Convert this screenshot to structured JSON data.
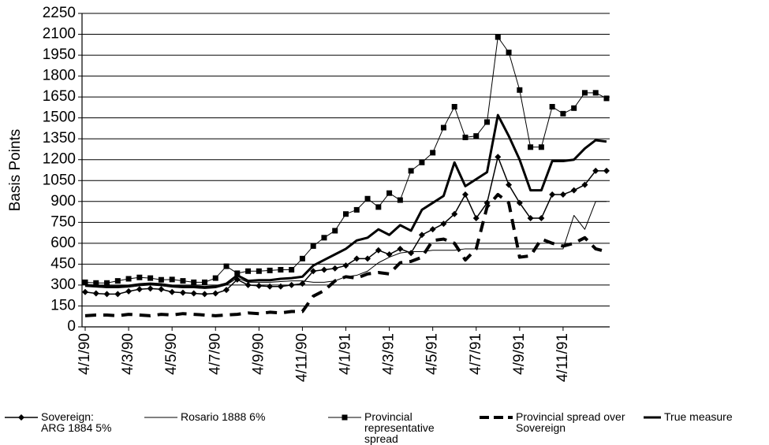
{
  "chart_data": {
    "type": "line",
    "y_label": "Basis Points",
    "categories": [
      "4/1/90",
      null,
      null,
      null,
      "4/3/90",
      null,
      null,
      null,
      "4/5/90",
      null,
      null,
      null,
      "4/7/90",
      null,
      null,
      null,
      "4/9/90",
      null,
      null,
      null,
      "4/11/90",
      null,
      null,
      null,
      "4/1/91",
      null,
      null,
      null,
      "4/3/91",
      null,
      null,
      null,
      "4/5/91",
      null,
      null,
      null,
      "4/7/91",
      null,
      null,
      null,
      "4/9/91",
      null,
      null,
      null,
      "4/11/91",
      null,
      null,
      null,
      null
    ],
    "series": [
      {
        "name": "Sovereign: ARG 1884 5%",
        "color": "#000000",
        "marker": "diamond",
        "line_width": 1.5,
        "dash": "solid",
        "values": [
          250,
          240,
          235,
          235,
          255,
          270,
          275,
          270,
          250,
          245,
          240,
          235,
          240,
          265,
          340,
          300,
          295,
          290,
          290,
          300,
          310,
          400,
          410,
          420,
          440,
          490,
          490,
          550,
          520,
          560,
          530,
          660,
          700,
          740,
          810,
          950,
          780,
          890,
          1220,
          1020,
          890,
          780,
          780,
          950,
          950,
          980,
          1020,
          1120,
          1120
        ]
      },
      {
        "name": "Rosario 1888 6%",
        "color": "#000000",
        "marker": "none",
        "line_width": 1,
        "dash": "solid",
        "values": [
          290,
          285,
          280,
          280,
          285,
          295,
          300,
          295,
          285,
          280,
          280,
          275,
          280,
          300,
          350,
          320,
          320,
          320,
          325,
          330,
          330,
          320,
          320,
          330,
          360,
          370,
          400,
          460,
          500,
          530,
          540,
          540,
          550,
          550,
          550,
          560,
          560,
          560,
          560,
          560,
          560,
          560,
          560,
          560,
          560,
          800,
          700,
          900,
          900
        ]
      },
      {
        "name": "Provincial representative spread",
        "color": "#000000",
        "marker": "square",
        "line_width": 1,
        "dash": "solid",
        "values": [
          320,
          315,
          315,
          330,
          345,
          355,
          350,
          338,
          340,
          330,
          320,
          320,
          350,
          435,
          385,
          400,
          400,
          405,
          410,
          410,
          490,
          580,
          640,
          690,
          810,
          840,
          920,
          860,
          960,
          910,
          1120,
          1180,
          1250,
          1430,
          1580,
          1360,
          1370,
          1470,
          2080,
          1970,
          1700,
          1290,
          1290,
          1580,
          1530,
          1570,
          1680,
          1680,
          1640
        ]
      },
      {
        "name": "Provincial spread over Sovereign",
        "color": "#000000",
        "marker": "none",
        "line_width": 4,
        "dash": "dashed",
        "values": [
          80,
          85,
          85,
          80,
          90,
          85,
          80,
          90,
          85,
          95,
          90,
          85,
          80,
          85,
          90,
          100,
          95,
          105,
          100,
          110,
          110,
          220,
          260,
          330,
          360,
          350,
          380,
          390,
          380,
          460,
          470,
          500,
          620,
          630,
          600,
          480,
          560,
          860,
          950,
          890,
          500,
          510,
          630,
          600,
          580,
          600,
          640,
          560,
          540
        ]
      },
      {
        "name": "True measure",
        "color": "#000000",
        "marker": "none",
        "line_width": 3,
        "dash": "solid",
        "values": [
          300,
          295,
          290,
          290,
          295,
          305,
          310,
          305,
          295,
          290,
          290,
          285,
          290,
          310,
          370,
          330,
          335,
          335,
          345,
          350,
          360,
          440,
          480,
          520,
          560,
          620,
          640,
          700,
          660,
          730,
          690,
          840,
          890,
          940,
          1180,
          1010,
          1060,
          1110,
          1520,
          1370,
          1200,
          980,
          980,
          1190,
          1190,
          1200,
          1280,
          1340,
          1330
        ]
      }
    ],
    "ylim": [
      0,
      2250
    ],
    "yticks": [
      0,
      150,
      300,
      450,
      600,
      750,
      900,
      1050,
      1200,
      1350,
      1500,
      1650,
      1800,
      1950,
      2100,
      2250
    ],
    "grid": true,
    "legend": "bottom"
  }
}
